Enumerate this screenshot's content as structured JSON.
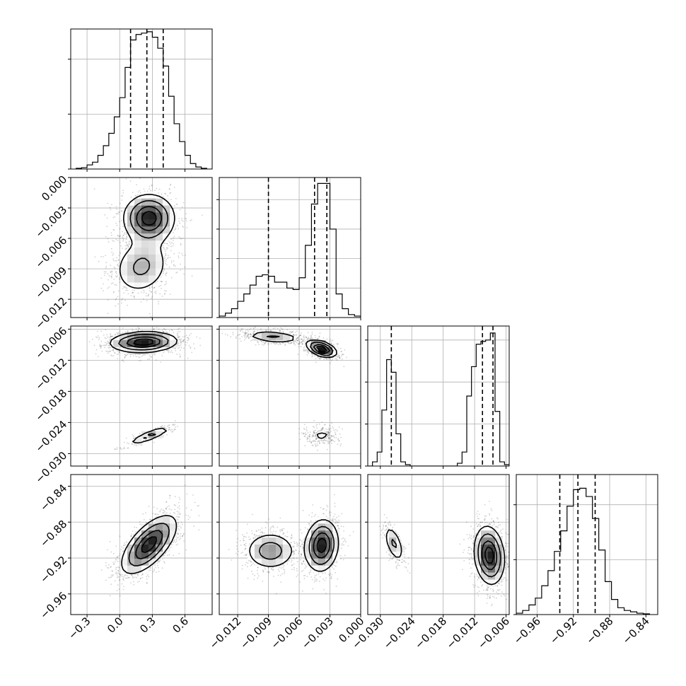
{
  "chart_data": {
    "type": "corner",
    "parameters": [
      {
        "ticks": [
          -0.3,
          0.0,
          0.3,
          0.6
        ],
        "tick_labels": [
          "−0.3",
          "0.0",
          "0.3",
          "0.6"
        ],
        "range": [
          -0.45,
          0.85
        ],
        "quantiles": [
          0.1,
          0.25,
          0.4
        ]
      },
      {
        "ticks": [
          -0.012,
          -0.009,
          -0.006,
          -0.003,
          0.0
        ],
        "tick_labels": [
          "−0.012",
          "−0.009",
          "−0.006",
          "−0.003",
          "0.000"
        ],
        "range": [
          -0.0138,
          0.0
        ],
        "quantiles": [
          -0.009,
          -0.0045,
          -0.0033
        ]
      },
      {
        "ticks": [
          -0.03,
          -0.024,
          -0.018,
          -0.012,
          -0.006
        ],
        "tick_labels": [
          "−0.030",
          "−0.024",
          "−0.018",
          "−0.012",
          "−0.006"
        ],
        "range": [
          -0.0324,
          -0.0054
        ],
        "quantiles": [
          -0.0279,
          -0.0105,
          -0.0085
        ]
      },
      {
        "ticks": [
          -0.96,
          -0.92,
          -0.88,
          -0.84
        ],
        "tick_labels": [
          "−0.96",
          "−0.92",
          "−0.88",
          "−0.84"
        ],
        "range": [
          -0.983,
          -0.827
        ],
        "quantiles": [
          -0.935,
          -0.915,
          -0.896
        ]
      }
    ],
    "histograms": [
      {
        "edges": [
          -0.4,
          -0.35,
          -0.3,
          -0.25,
          -0.2,
          -0.15,
          -0.1,
          -0.05,
          0.0,
          0.05,
          0.1,
          0.15,
          0.2,
          0.25,
          0.3,
          0.35,
          0.4,
          0.45,
          0.5,
          0.55,
          0.6,
          0.65,
          0.7,
          0.75,
          0.8
        ],
        "counts": [
          0.5,
          1,
          3,
          5,
          10,
          17,
          26,
          38,
          52,
          74,
          94,
          98,
          99,
          100,
          96,
          88,
          75,
          53,
          33,
          20,
          10,
          4,
          1.5,
          0.5
        ],
        "ymax": 102,
        "yticks": [
          0,
          40,
          80
        ]
      },
      {
        "edges": [
          -0.0138,
          -0.0132,
          -0.0126,
          -0.012,
          -0.0114,
          -0.0108,
          -0.0102,
          -0.0096,
          -0.009,
          -0.0084,
          -0.0078,
          -0.0072,
          -0.0066,
          -0.006,
          -0.0054,
          -0.0048,
          -0.0042,
          -0.0036,
          -0.003,
          -0.0024,
          -0.0018,
          -0.0012,
          -0.0006,
          0.0
        ],
        "counts": [
          1,
          3,
          6,
          11,
          16,
          22,
          28,
          29,
          28,
          24,
          24,
          20,
          19,
          27,
          49,
          77,
          91,
          91,
          60,
          16,
          6,
          2,
          1
        ],
        "ymax": 95,
        "yticks": [
          0,
          20,
          40,
          60,
          80
        ]
      },
      {
        "edges": [
          -0.0324,
          -0.0315,
          -0.0306,
          -0.0297,
          -0.0288,
          -0.0279,
          -0.027,
          -0.0261,
          -0.0252,
          -0.0243,
          -0.0234,
          -0.0225,
          -0.0216,
          -0.0207,
          -0.0198,
          -0.0189,
          -0.018,
          -0.0171,
          -0.0162,
          -0.0153,
          -0.0144,
          -0.0135,
          -0.0126,
          -0.0117,
          -0.0108,
          -0.0099,
          -0.009,
          -0.0081,
          -0.0072,
          -0.0063,
          -0.0054
        ],
        "counts": [
          0,
          3,
          10,
          40,
          76,
          67,
          23,
          3,
          1,
          0,
          0,
          0,
          0,
          0,
          0,
          0,
          0,
          0,
          0,
          2,
          10,
          50,
          71,
          87,
          89,
          90,
          95,
          39,
          3,
          1
        ],
        "ymax": 100,
        "yticks": [
          0,
          30,
          60,
          90
        ]
      },
      {
        "edges": [
          -0.983,
          -0.976,
          -0.969,
          -0.962,
          -0.955,
          -0.948,
          -0.941,
          -0.934,
          -0.927,
          -0.92,
          -0.913,
          -0.906,
          -0.899,
          -0.892,
          -0.885,
          -0.878,
          -0.871,
          -0.864,
          -0.857,
          -0.85,
          -0.843,
          -0.836
        ],
        "counts": [
          1,
          3,
          7,
          12,
          21,
          32,
          46,
          61,
          79,
          91,
          92,
          86,
          70,
          47,
          24,
          11,
          5,
          3,
          2,
          1,
          0.5
        ],
        "ymax": 102,
        "yticks": [
          0,
          40,
          80
        ]
      }
    ],
    "pairs": [
      {
        "row": 1,
        "col": 0,
        "modes": [
          {
            "cx": 0.27,
            "cy": -0.004,
            "sx": 0.13,
            "sy": 0.0013,
            "rho": 0.0,
            "weight": 0.6
          },
          {
            "cx": 0.2,
            "cy": -0.0088,
            "sx": 0.15,
            "sy": 0.0016,
            "rho": 0.15,
            "weight": 0.4
          }
        ]
      },
      {
        "row": 2,
        "col": 0,
        "modes": [
          {
            "cx": 0.22,
            "cy": -0.0085,
            "sx": 0.17,
            "sy": 0.0011,
            "rho": 0.1,
            "weight": 0.85
          },
          {
            "cx": 0.28,
            "cy": -0.0265,
            "sx": 0.12,
            "sy": 0.0011,
            "rho": 0.85,
            "weight": 0.15
          }
        ]
      },
      {
        "row": 2,
        "col": 1,
        "modes": [
          {
            "cx": -0.0085,
            "cy": -0.0075,
            "sx": 0.0016,
            "sy": 0.0007,
            "rho": -0.3,
            "weight": 0.35
          },
          {
            "cx": -0.0038,
            "cy": -0.0098,
            "sx": 0.0008,
            "sy": 0.0009,
            "rho": -0.45,
            "weight": 0.5
          },
          {
            "cx": -0.0038,
            "cy": -0.0265,
            "sx": 0.0009,
            "sy": 0.001,
            "rho": 0.1,
            "weight": 0.15
          }
        ]
      },
      {
        "row": 3,
        "col": 0,
        "modes": [
          {
            "cx": 0.27,
            "cy": -0.905,
            "sx": 0.14,
            "sy": 0.018,
            "rho": 0.65,
            "weight": 1.0
          }
        ]
      },
      {
        "row": 3,
        "col": 1,
        "modes": [
          {
            "cx": -0.0088,
            "cy": -0.912,
            "sx": 0.0014,
            "sy": 0.012,
            "rho": 0.0,
            "weight": 0.4
          },
          {
            "cx": -0.0038,
            "cy": -0.906,
            "sx": 0.0009,
            "sy": 0.016,
            "rho": 0.1,
            "weight": 0.6
          }
        ]
      },
      {
        "row": 3,
        "col": 2,
        "modes": [
          {
            "cx": -0.0274,
            "cy": -0.904,
            "sx": 0.0011,
            "sy": 0.012,
            "rho": -0.55,
            "weight": 0.15
          },
          {
            "cx": -0.0092,
            "cy": -0.917,
            "sx": 0.0016,
            "sy": 0.018,
            "rho": -0.15,
            "weight": 0.85
          }
        ]
      }
    ]
  }
}
